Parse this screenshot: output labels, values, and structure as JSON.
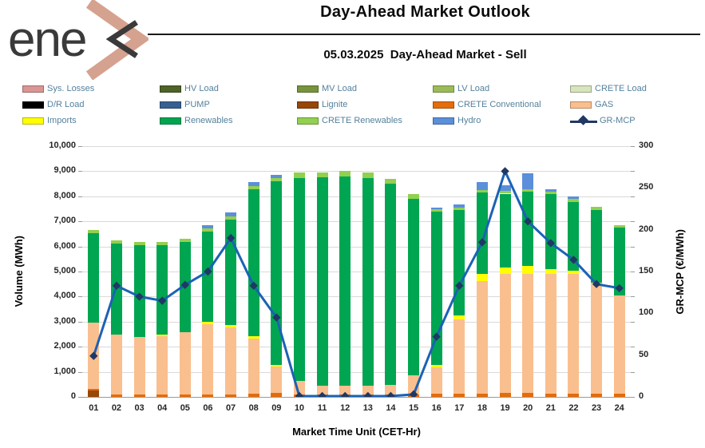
{
  "header": {
    "logo_text": "ene",
    "title": "Day-Ahead Market Outlook",
    "subtitle": "05.03.2025  Day-Ahead Market - Sell"
  },
  "legend": [
    {
      "label": "Sys. Losses",
      "color": "#d99694",
      "type": "box"
    },
    {
      "label": "HV Load",
      "color": "#4f6228",
      "type": "box"
    },
    {
      "label": "MV Load",
      "color": "#77933c",
      "type": "box"
    },
    {
      "label": "LV Load",
      "color": "#9bbb59",
      "type": "box"
    },
    {
      "label": "CRETE Load",
      "color": "#d7e4bd",
      "type": "box"
    },
    {
      "label": "D/R Load",
      "color": "#000000",
      "type": "box"
    },
    {
      "label": "PUMP",
      "color": "#376092",
      "type": "box"
    },
    {
      "label": "Lignite",
      "color": "#974706",
      "type": "box"
    },
    {
      "label": "CRETE Conventional",
      "color": "#e46c0a",
      "type": "box"
    },
    {
      "label": "GAS",
      "color": "#fabf8f",
      "type": "box"
    },
    {
      "label": "Imports",
      "color": "#ffff00",
      "type": "box"
    },
    {
      "label": "Renewables",
      "color": "#00a551",
      "type": "box"
    },
    {
      "label": "CRETE Renewables",
      "color": "#92d050",
      "type": "box"
    },
    {
      "label": "Hydro",
      "color": "#5b8fd9",
      "type": "box"
    },
    {
      "label": "GR-MCP",
      "color": "#1f3864",
      "type": "line"
    }
  ],
  "chart_data": {
    "type": "stacked-bar+line",
    "title": "Day-Ahead Market Outlook",
    "subtitle": "05.03.2025  Day-Ahead Market - Sell",
    "categories": [
      "01",
      "02",
      "03",
      "04",
      "05",
      "06",
      "07",
      "08",
      "09",
      "10",
      "11",
      "12",
      "13",
      "14",
      "15",
      "16",
      "17",
      "18",
      "19",
      "20",
      "21",
      "22",
      "23",
      "24"
    ],
    "series": [
      {
        "name": "Lignite",
        "color": "#974706",
        "values": [
          250,
          0,
          0,
          0,
          0,
          0,
          0,
          0,
          0,
          0,
          0,
          0,
          0,
          0,
          0,
          0,
          0,
          0,
          0,
          0,
          0,
          0,
          0,
          0
        ]
      },
      {
        "name": "CRETE Conventional",
        "color": "#e46c0a",
        "values": [
          80,
          80,
          80,
          80,
          80,
          80,
          80,
          130,
          150,
          80,
          80,
          80,
          80,
          80,
          80,
          130,
          130,
          130,
          150,
          150,
          130,
          130,
          130,
          130
        ]
      },
      {
        "name": "GAS",
        "color": "#fabf8f",
        "values": [
          2630,
          2390,
          2310,
          2350,
          2500,
          2820,
          2690,
          2190,
          1050,
          570,
          360,
          360,
          360,
          400,
          780,
          1060,
          2960,
          4500,
          4740,
          4760,
          4780,
          4770,
          4420,
          3930
        ]
      },
      {
        "name": "Imports",
        "color": "#ffff00",
        "values": [
          0,
          0,
          0,
          40,
          0,
          85,
          105,
          85,
          85,
          0,
          0,
          0,
          0,
          0,
          0,
          85,
          150,
          260,
          265,
          300,
          190,
          125,
          0,
          0
        ]
      },
      {
        "name": "Renewables",
        "color": "#00a551",
        "values": [
          3560,
          3640,
          3670,
          3590,
          3590,
          3615,
          4200,
          5870,
          7315,
          8090,
          8310,
          8350,
          8300,
          8010,
          7030,
          6100,
          4200,
          3270,
          2950,
          2980,
          2985,
          2760,
          2915,
          2695
        ]
      },
      {
        "name": "CRETE Renewables",
        "color": "#92d050",
        "values": [
          130,
          130,
          130,
          130,
          130,
          125,
          125,
          125,
          125,
          210,
          210,
          210,
          210,
          210,
          210,
          100,
          100,
          100,
          100,
          100,
          100,
          100,
          105,
          105
        ]
      },
      {
        "name": "Hydro",
        "color": "#5b8fd9",
        "values": [
          0,
          0,
          0,
          0,
          0,
          125,
          170,
          180,
          125,
          0,
          0,
          0,
          0,
          0,
          0,
          85,
          130,
          320,
          245,
          640,
          105,
          105,
          0,
          0
        ]
      }
    ],
    "line_series": {
      "name": "GR-MCP",
      "color": "#1b62b5",
      "marker_color": "#1f3864",
      "values": [
        49,
        133,
        120,
        115,
        134,
        150,
        190,
        133,
        95,
        1,
        1,
        1,
        1,
        1,
        3,
        72,
        133,
        185,
        270,
        210,
        184,
        164,
        135,
        130
      ]
    },
    "axes": {
      "left": {
        "label": "Volume (MWh)",
        "min": 0,
        "max": 10000,
        "step": 1000
      },
      "right": {
        "label": "GR-MCP (€/MWh)",
        "min": 0,
        "max": 300,
        "step": 50
      },
      "x": {
        "label": "Market Time Unit (CET-Hr)"
      }
    },
    "grid": true,
    "legend_position": "top"
  }
}
